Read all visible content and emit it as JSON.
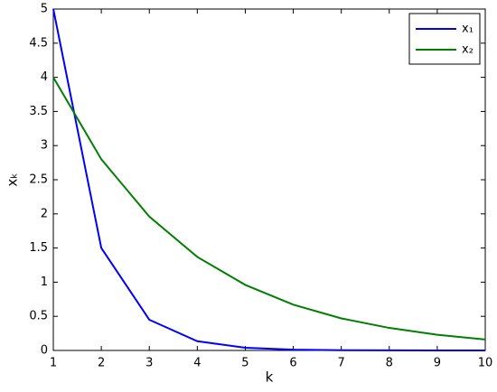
{
  "chart_data": {
    "type": "line",
    "xlabel": "k",
    "ylabel": "xₖ",
    "x": [
      1,
      2,
      3,
      4,
      5,
      6,
      7,
      8,
      9,
      10
    ],
    "series": [
      {
        "name": "x₁",
        "color": "#0000ff",
        "values": [
          5,
          1.5,
          0.45,
          0.135,
          0.04,
          0.012,
          0.004,
          0.001,
          0.0003,
          0.0001
        ]
      },
      {
        "name": "x₂",
        "color": "#007f00",
        "values": [
          4,
          2.8,
          1.96,
          1.37,
          0.96,
          0.67,
          0.47,
          0.33,
          0.23,
          0.16
        ]
      }
    ],
    "xlim": [
      1,
      10
    ],
    "xticks": [
      1,
      2,
      3,
      4,
      5,
      6,
      7,
      8,
      9,
      10
    ],
    "ylim": [
      0,
      5
    ],
    "yticks": [
      0,
      0.5,
      1,
      1.5,
      2,
      2.5,
      3,
      3.5,
      4,
      4.5,
      5
    ],
    "grid": false,
    "legend": "upper right"
  }
}
